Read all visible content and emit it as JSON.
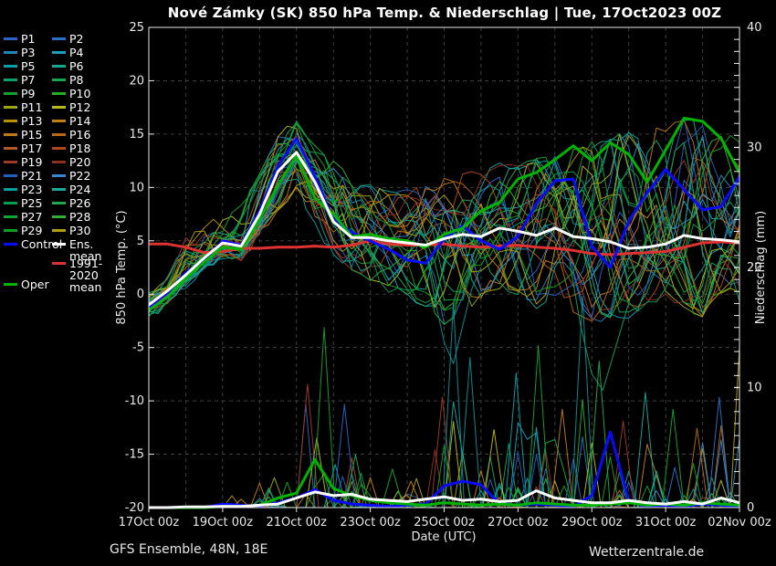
{
  "title": "Nové Zámky  (SK)  850 hPa Temp. & Niederschlag | Tue, 17Oct2023 00Z",
  "footer": {
    "left": "GFS Ensemble, 48N, 18E",
    "right": "Wetterzentrale.de"
  },
  "legend": {
    "items": [
      {
        "label": "P1",
        "color": "#2a64c8",
        "col": 0,
        "row": 0
      },
      {
        "label": "P2",
        "color": "#2a70c8",
        "col": 1,
        "row": 0
      },
      {
        "label": "P3",
        "color": "#2088b8",
        "col": 0,
        "row": 1
      },
      {
        "label": "P4",
        "color": "#18a0c0",
        "col": 1,
        "row": 1
      },
      {
        "label": "P5",
        "color": "#08a0a8",
        "col": 0,
        "row": 2
      },
      {
        "label": "P6",
        "color": "#10a890",
        "col": 1,
        "row": 2
      },
      {
        "label": "P7",
        "color": "#0aa070",
        "col": 0,
        "row": 3
      },
      {
        "label": "P8",
        "color": "#16a848",
        "col": 1,
        "row": 3
      },
      {
        "label": "P9",
        "color": "#14a030",
        "col": 0,
        "row": 4
      },
      {
        "label": "P10",
        "color": "#22b022",
        "col": 1,
        "row": 4
      },
      {
        "label": "P11",
        "color": "#98a810",
        "col": 0,
        "row": 5
      },
      {
        "label": "P12",
        "color": "#b8b818",
        "col": 1,
        "row": 5
      },
      {
        "label": "P13",
        "color": "#b89000",
        "col": 0,
        "row": 6
      },
      {
        "label": "P14",
        "color": "#c08010",
        "col": 1,
        "row": 6
      },
      {
        "label": "P15",
        "color": "#c07818",
        "col": 0,
        "row": 7
      },
      {
        "label": "P16",
        "color": "#b86a10",
        "col": 1,
        "row": 7
      },
      {
        "label": "P17",
        "color": "#b05820",
        "col": 0,
        "row": 8
      },
      {
        "label": "P18",
        "color": "#b04818",
        "col": 1,
        "row": 8
      },
      {
        "label": "P19",
        "color": "#a03828",
        "col": 0,
        "row": 9
      },
      {
        "label": "P20",
        "color": "#8f2f1f",
        "col": 1,
        "row": 9
      },
      {
        "label": "P21",
        "color": "#2060c0",
        "col": 0,
        "row": 10
      },
      {
        "label": "P22",
        "color": "#3585d0",
        "col": 1,
        "row": 10
      },
      {
        "label": "P23",
        "color": "#00a0a0",
        "col": 0,
        "row": 11
      },
      {
        "label": "P24",
        "color": "#1aa898",
        "col": 1,
        "row": 11
      },
      {
        "label": "P25",
        "color": "#00a050",
        "col": 0,
        "row": 12
      },
      {
        "label": "P26",
        "color": "#20a850",
        "col": 1,
        "row": 12
      },
      {
        "label": "P27",
        "color": "#10a430",
        "col": 0,
        "row": 13
      },
      {
        "label": "P28",
        "color": "#30b030",
        "col": 1,
        "row": 13
      },
      {
        "label": "P29",
        "color": "#0f9f1f",
        "col": 0,
        "row": 14
      },
      {
        "label": "P30",
        "color": "#b0a010",
        "col": 1,
        "row": 14
      },
      {
        "label": "Control",
        "color": "#0a0aff",
        "col": 0,
        "row": 15
      },
      {
        "label": "Ens. mean",
        "color": "#ffffff",
        "col": 1,
        "row": 15
      },
      {
        "label": "1991-2020\nmean",
        "color": "#e03232",
        "col": 1,
        "row": 16.4
      },
      {
        "label": "Oper",
        "color": "#00b400",
        "col": 0,
        "row": 17.9
      }
    ]
  },
  "chart_data": {
    "type": "line",
    "x_unit": "days from 17Oct2023 00Z",
    "x_step_days": 0.5,
    "x_range_days": [
      0,
      16
    ],
    "xlabel": "Date (UTC)",
    "ylabel_left": "850 hPa Temp. (°C)",
    "ylabel_right": "Niederschlag (mm)",
    "ylim_left": [
      -20,
      25
    ],
    "ylim_right": [
      0,
      40
    ],
    "y_ticks_left": [
      25,
      20,
      15,
      10,
      5,
      0,
      -5,
      -10,
      -15,
      -20
    ],
    "y_ticks_right": [
      40,
      30,
      20,
      10,
      0
    ],
    "x_tick_labels": [
      "17Oct 00z",
      "19Oct 00z",
      "21Oct 00z",
      "23Oct 00z",
      "25Oct 00z",
      "27Oct 00z",
      "29Oct 00z",
      "31Oct 00z",
      "02Nov 00z"
    ],
    "x_tick_days": [
      0,
      2,
      4,
      6,
      8,
      10,
      12,
      14,
      16
    ],
    "grid": {
      "h_lines_temp": [
        20,
        15,
        10,
        5,
        0,
        -5,
        -10,
        -15
      ],
      "v_lines_days": [
        1,
        2,
        3,
        4,
        5,
        6,
        7,
        8,
        9,
        10,
        11,
        12,
        13,
        14,
        15
      ]
    },
    "series": {
      "ens_mean_temp": {
        "name": "Ens. mean",
        "color": "#ffffff",
        "values": [
          -1.0,
          0.3,
          1.8,
          3.4,
          4.8,
          4.5,
          7.5,
          11.5,
          13.3,
          10.5,
          6.8,
          5.3,
          5.3,
          5.0,
          4.8,
          4.6,
          5.2,
          5.6,
          5.4,
          6.2,
          5.9,
          5.5,
          6.2,
          5.4,
          5.2,
          4.9,
          4.3,
          4.4,
          4.7,
          5.5,
          5.2,
          5.1,
          4.9
        ]
      },
      "control_temp": {
        "name": "Control",
        "color": "#0a0aff",
        "values": [
          -1.2,
          0.1,
          2.0,
          3.2,
          5.0,
          4.6,
          7.8,
          12.0,
          14.6,
          11.0,
          7.0,
          5.8,
          5.0,
          4.2,
          3.2,
          2.9,
          5.2,
          6.4,
          5.0,
          4.2,
          5.4,
          8.5,
          10.6,
          10.8,
          4.5,
          2.5,
          6.8,
          9.5,
          11.7,
          9.8,
          7.9,
          8.2,
          11.0
        ]
      },
      "oper_temp": {
        "name": "Oper",
        "color": "#00b400",
        "values": [
          -1.5,
          -0.3,
          1.5,
          3.0,
          4.4,
          4.2,
          7.0,
          10.2,
          13.0,
          9.0,
          7.5,
          5.4,
          5.6,
          5.2,
          5.0,
          4.4,
          5.6,
          6.2,
          7.8,
          8.6,
          10.8,
          11.4,
          12.6,
          13.9,
          12.5,
          14.2,
          13.1,
          10.5,
          13.5,
          16.5,
          16.2,
          14.6,
          11.4
        ]
      },
      "climate_mean_temp": {
        "name": "1991-2020 mean",
        "color": "#e03232",
        "values": [
          4.7,
          4.7,
          4.4,
          3.9,
          4.0,
          4.3,
          4.3,
          4.4,
          4.4,
          4.5,
          4.4,
          4.6,
          5.0,
          4.7,
          4.6,
          4.6,
          4.7,
          4.5,
          4.4,
          4.5,
          4.6,
          4.4,
          4.3,
          4.1,
          3.8,
          3.7,
          3.8,
          3.9,
          4.0,
          4.4,
          4.8,
          4.9,
          4.8
        ]
      },
      "ens_mean_precip": {
        "name": "Ens. mean precip",
        "color": "#ffffff",
        "values": [
          0.0,
          0.0,
          0.05,
          0.05,
          0.1,
          0.1,
          0.2,
          0.3,
          0.8,
          1.3,
          1.0,
          1.1,
          0.7,
          0.6,
          0.5,
          0.7,
          0.9,
          0.6,
          0.7,
          0.5,
          0.6,
          1.4,
          0.8,
          0.6,
          0.4,
          0.4,
          0.6,
          0.4,
          0.3,
          0.5,
          0.3,
          0.8,
          0.4
        ]
      },
      "control_precip": {
        "name": "Control precip",
        "color": "#0a0aff",
        "values": [
          0,
          0,
          0,
          0,
          0.3,
          0.2,
          0.1,
          0.4,
          0.8,
          1.5,
          0.6,
          0.3,
          0.2,
          0.1,
          0.2,
          0.3,
          1.8,
          2.2,
          1.9,
          0.3,
          0.2,
          0.3,
          0.2,
          0.1,
          1.0,
          6.3,
          0.5,
          0.1,
          0.2,
          0.1,
          0.3,
          0.2,
          0.1
        ]
      },
      "oper_precip": {
        "name": "Oper precip",
        "color": "#00b400",
        "values": [
          0,
          0,
          0,
          0,
          0.1,
          0.1,
          0.2,
          0.8,
          1.2,
          4.0,
          1.6,
          1.0,
          0.6,
          0.4,
          0.3,
          0.2,
          0.4,
          0.3,
          0.2,
          0.3,
          0.2,
          0.4,
          0.3,
          0.2,
          0.2,
          0.3,
          0.4,
          0.2,
          0.3,
          0.2,
          0.4,
          0.3,
          0.2
        ]
      }
    },
    "ensemble_envelope_temp": {
      "min": [
        -2.0,
        -1.0,
        0.8,
        2.4,
        3.5,
        3.4,
        5.5,
        8.0,
        10.0,
        6.0,
        4.0,
        2.0,
        1.5,
        0.5,
        0.0,
        -1.0,
        -2.5,
        -2.0,
        0.0,
        0.5,
        0.0,
        -1.0,
        0.0,
        -1.5,
        -2.5,
        -2.0,
        -2.0,
        -1.0,
        0.0,
        -1.0,
        -2.0,
        0.0,
        -1.0
      ],
      "max": [
        0.0,
        1.5,
        5.5,
        6.5,
        7.0,
        8.0,
        11.0,
        14.5,
        16.3,
        14.0,
        12.5,
        10.5,
        10.0,
        9.5,
        9.5,
        10.0,
        10.5,
        11.0,
        11.5,
        12.0,
        12.0,
        12.5,
        13.0,
        13.8,
        14.0,
        14.5,
        15.0,
        15.0,
        15.5,
        16.5,
        16.3,
        15.0,
        14.5
      ]
    },
    "member_colors": [
      "#2a64c8",
      "#2a70c8",
      "#2088b8",
      "#18a0c0",
      "#08a0a8",
      "#10a890",
      "#0aa070",
      "#16a848",
      "#14a030",
      "#22b022",
      "#98a810",
      "#b8b818",
      "#b89000",
      "#c08010",
      "#c07818",
      "#b86a10",
      "#b05820",
      "#b04818",
      "#a03828",
      "#8f2f1f",
      "#2060c0",
      "#3585d0",
      "#00a0a0",
      "#1aa898",
      "#00a050",
      "#20a850",
      "#10a430",
      "#30b030",
      "#0f9f1f",
      "#b0a010"
    ],
    "member_precip_activity_max": [
      0.3,
      0.3,
      0.5,
      0.5,
      1,
      2,
      3,
      6,
      9,
      15,
      9,
      6,
      4,
      3,
      2.5,
      5,
      12,
      14,
      8,
      7,
      10,
      13,
      9,
      16,
      10,
      7,
      8,
      9,
      7,
      6,
      8,
      10,
      12
    ],
    "notable_precip_spikes": [
      {
        "day": 3.4,
        "mm": 2.5,
        "color": "#98a810"
      },
      {
        "day": 4.3,
        "mm": 10.3,
        "color": "#a03828"
      },
      {
        "day": 4.55,
        "mm": 5.8,
        "color": "#b8b818"
      },
      {
        "day": 4.75,
        "mm": 15.0,
        "color": "#14a030"
      },
      {
        "day": 5.05,
        "mm": 3.6,
        "color": "#08a0a8"
      },
      {
        "day": 5.3,
        "mm": 8.6,
        "color": "#2a64c8"
      },
      {
        "day": 5.6,
        "mm": 4.4,
        "color": "#20a850"
      },
      {
        "day": 6.6,
        "mm": 3.2,
        "color": "#10a430"
      },
      {
        "day": 7.1,
        "mm": 2.2,
        "color": "#c08010"
      },
      {
        "day": 7.95,
        "mm": 9.2,
        "color": "#a03828"
      },
      {
        "day": 8.25,
        "mm": 17.0,
        "color": "#0a8f96"
      },
      {
        "day": 8.7,
        "mm": 12.5,
        "color": "#0a8f96"
      },
      {
        "day": 9.35,
        "mm": 6.5,
        "color": "#b8b818"
      },
      {
        "day": 9.95,
        "mm": 11.2,
        "color": "#08a0a8"
      },
      {
        "day": 10.55,
        "mm": 13.5,
        "color": "#14a030"
      },
      {
        "day": 11.2,
        "mm": 8.2,
        "color": "#c07818"
      },
      {
        "day": 11.75,
        "mm": 17.6,
        "color": "#0a8f96"
      },
      {
        "day": 12.2,
        "mm": 12.2,
        "color": "#20a850"
      },
      {
        "day": 12.85,
        "mm": 7.2,
        "color": "#a03828"
      },
      {
        "day": 13.45,
        "mm": 9.6,
        "color": "#1aa898"
      },
      {
        "day": 14.2,
        "mm": 8.2,
        "color": "#10a430"
      },
      {
        "day": 14.85,
        "mm": 6.6,
        "color": "#b86a10"
      },
      {
        "day": 15.45,
        "mm": 9.2,
        "color": "#2a70c8"
      },
      {
        "day": 16.05,
        "mm": 16.0,
        "color": "#b0a010"
      }
    ],
    "notable_temp_dips": [
      {
        "color": "#0a8f96",
        "points": [
          [
            7.5,
            4.0
          ],
          [
            7.75,
            -0.5
          ],
          [
            8.0,
            -4.5
          ],
          [
            8.25,
            -6.5
          ],
          [
            8.5,
            -3.0
          ],
          [
            8.75,
            0.5
          ],
          [
            9.0,
            2.5
          ]
        ]
      },
      {
        "color": "#10a060",
        "points": [
          [
            11.4,
            3.0
          ],
          [
            11.7,
            -3.0
          ],
          [
            12.0,
            -7.5
          ],
          [
            12.3,
            -9.0
          ],
          [
            12.6,
            -5.5
          ],
          [
            12.9,
            -2.0
          ],
          [
            13.2,
            1.5
          ]
        ]
      }
    ],
    "ensemble_member_count": 30,
    "random_seed": 1000,
    "legend_position": "left",
    "grid_on": true
  }
}
